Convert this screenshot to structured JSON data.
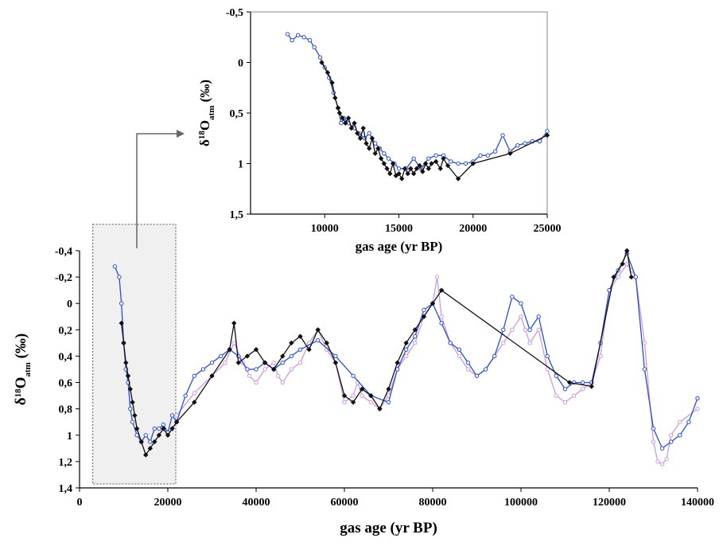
{
  "chart_data": [
    {
      "type": "line",
      "panel": "main",
      "xlabel": "gas age (yr BP)",
      "ylabel_main": "δ",
      "ylabel_sup": "18",
      "ylabel_o": "O",
      "ylabel_sub": "atm",
      "ylabel_unit": " (‰)",
      "xlim": [
        0,
        140000
      ],
      "ylim": [
        -0.4,
        1.4
      ],
      "y_inverted": true,
      "grid": false,
      "legend": "none",
      "x_ticks": [
        0,
        20000,
        40000,
        60000,
        80000,
        100000,
        120000,
        140000
      ],
      "x_tick_labels": [
        "0",
        "20000",
        "40000",
        "60000",
        "80000",
        "100000",
        "120000",
        "140000"
      ],
      "y_ticks": [
        -0.4,
        -0.2,
        0,
        0.2,
        0.4,
        0.6,
        0.8,
        1,
        1.2,
        1.4
      ],
      "y_tick_labels": [
        "-0,4",
        "-0,2",
        "0",
        "0,2",
        "0,4",
        "0,6",
        "0,8",
        "1",
        "1,2",
        "1,4"
      ],
      "highlight_box": {
        "x_range": [
          3000,
          21800
        ],
        "y_range": [
          -0.6,
          1.37
        ],
        "fill": "#f0f0f0"
      },
      "series": [
        {
          "color": "#cc99dd",
          "marker": "circle",
          "x": [
            22000,
            26000,
            30000,
            33000,
            35000,
            37000,
            38500,
            40000,
            42000,
            44000,
            45000,
            46000,
            48000,
            50000,
            52000,
            54000,
            56000,
            58000,
            60000,
            62000,
            63000,
            64000,
            66000,
            68000,
            70000,
            72000,
            74000,
            76000,
            78000,
            80000,
            81000,
            82000,
            84000,
            86000,
            88000,
            90000,
            92000,
            94000,
            96000,
            98000,
            100000,
            101000,
            102000,
            104000,
            106000,
            108000,
            110000,
            112000,
            114000,
            116000,
            118000,
            120000,
            122000,
            124000,
            125000,
            126000,
            128000,
            130000,
            131000,
            132000,
            133000,
            134000,
            136000,
            140000
          ],
          "y": [
            0.85,
            0.68,
            0.55,
            0.45,
            0.3,
            0.45,
            0.55,
            0.6,
            0.5,
            0.45,
            0.55,
            0.6,
            0.5,
            0.45,
            0.3,
            0.2,
            0.35,
            0.45,
            0.75,
            0.7,
            0.6,
            0.7,
            0.75,
            0.8,
            0.7,
            0.5,
            0.4,
            0.3,
            0.1,
            0.0,
            -0.2,
            0.1,
            0.3,
            0.4,
            0.5,
            0.55,
            0.5,
            0.4,
            0.3,
            0.2,
            0.1,
            0.2,
            0.3,
            0.2,
            0.5,
            0.7,
            0.75,
            0.7,
            0.65,
            0.6,
            0.4,
            -0.1,
            -0.2,
            -0.3,
            -0.25,
            -0.2,
            0.3,
            1.05,
            1.2,
            1.22,
            1.18,
            1.0,
            0.9,
            0.8
          ]
        },
        {
          "color": "#2c4fc4",
          "marker": "circle",
          "x": [
            8000,
            9000,
            9500,
            10000,
            10500,
            11000,
            11500,
            12000,
            13000,
            14000,
            15000,
            16000,
            17000,
            18000,
            19000,
            20000,
            21000,
            22000,
            24000,
            26000,
            28000,
            30000,
            32000,
            34000,
            36000,
            38000,
            40000,
            42000,
            44000,
            46000,
            48000,
            50000,
            54000,
            58000,
            62000,
            66000,
            70000,
            72000,
            74000,
            76000,
            78000,
            80000,
            82000,
            84000,
            86000,
            88000,
            90000,
            92000,
            94000,
            96000,
            98000,
            100000,
            102000,
            104000,
            106000,
            108000,
            110000,
            112000,
            114000,
            116000,
            118000,
            120000,
            122000,
            124000,
            126000,
            128000,
            130000,
            132000,
            134000,
            136000,
            138000,
            140000
          ],
          "y": [
            -0.28,
            -0.2,
            0.0,
            0.3,
            0.5,
            0.6,
            0.8,
            0.9,
            1.0,
            1.05,
            1.0,
            1.05,
            0.95,
            0.95,
            0.92,
            0.98,
            0.85,
            0.9,
            0.7,
            0.55,
            0.5,
            0.45,
            0.4,
            0.35,
            0.4,
            0.5,
            0.5,
            0.45,
            0.5,
            0.45,
            0.4,
            0.35,
            0.28,
            0.4,
            0.55,
            0.7,
            0.75,
            0.5,
            0.35,
            0.25,
            0.05,
            0.0,
            0.15,
            0.3,
            0.35,
            0.45,
            0.55,
            0.5,
            0.4,
            0.2,
            -0.05,
            0.0,
            0.2,
            0.1,
            0.4,
            0.55,
            0.65,
            0.6,
            0.6,
            0.6,
            0.3,
            -0.1,
            -0.25,
            -0.38,
            -0.2,
            0.5,
            0.95,
            1.1,
            1.05,
            1.0,
            0.9,
            0.72
          ]
        },
        {
          "color": "#111111",
          "marker": "diamond",
          "x": [
            9500,
            10000,
            10500,
            11000,
            11500,
            12000,
            12500,
            13000,
            14000,
            15000,
            16000,
            17000,
            18000,
            19000,
            20000,
            21000,
            22000,
            26000,
            30000,
            34000,
            35000,
            36000,
            38000,
            40000,
            42000,
            44000,
            46000,
            48000,
            50000,
            52000,
            54000,
            56000,
            58000,
            60000,
            62000,
            64000,
            66000,
            68000,
            70000,
            72000,
            74000,
            76000,
            78000,
            80000,
            82000,
            111000,
            116000,
            121000,
            123000,
            124000,
            125000
          ],
          "y": [
            0.15,
            0.3,
            0.45,
            0.55,
            0.65,
            0.75,
            0.85,
            0.95,
            1.05,
            1.15,
            1.1,
            1.05,
            1.0,
            0.95,
            1.0,
            0.95,
            0.9,
            0.75,
            0.55,
            0.35,
            0.15,
            0.45,
            0.4,
            0.35,
            0.45,
            0.5,
            0.4,
            0.3,
            0.25,
            0.35,
            0.2,
            0.3,
            0.45,
            0.7,
            0.75,
            0.65,
            0.7,
            0.8,
            0.65,
            0.45,
            0.3,
            0.2,
            0.1,
            0.0,
            -0.1,
            0.6,
            0.63,
            -0.2,
            -0.3,
            -0.4,
            -0.2
          ]
        }
      ]
    },
    {
      "type": "line",
      "panel": "inset",
      "xlabel": "gas age (yr BP)",
      "ylabel_main": "δ",
      "ylabel_sup": "18",
      "ylabel_o": "O",
      "ylabel_sub": "atm",
      "ylabel_unit": " (‰)",
      "xlim": [
        5000,
        25000
      ],
      "ylim": [
        -0.5,
        1.5
      ],
      "y_inverted": true,
      "grid": false,
      "legend": "none",
      "x_ticks": [
        10000,
        15000,
        20000,
        25000
      ],
      "x_tick_labels": [
        "10000",
        "15000",
        "20000",
        "25000"
      ],
      "y_ticks": [
        -0.5,
        0,
        0.5,
        1,
        1.5
      ],
      "y_tick_labels": [
        "-0,5",
        "0",
        "0,5",
        "1",
        "1,5"
      ],
      "series": [
        {
          "color": "#2c4fc4",
          "marker": "circle",
          "x": [
            7500,
            7800,
            8200,
            8600,
            9000,
            9300,
            9700,
            10000,
            10300,
            10600,
            10900,
            11100,
            11300,
            11600,
            12000,
            12300,
            12700,
            13000,
            13400,
            13700,
            14000,
            14300,
            14700,
            15000,
            15500,
            16000,
            16500,
            17000,
            17500,
            18000,
            18500,
            19000,
            19500,
            20000,
            20500,
            21000,
            21500,
            22000,
            22500,
            23000,
            23500,
            24000,
            24500,
            25000
          ],
          "y": [
            -0.28,
            -0.22,
            -0.27,
            -0.25,
            -0.22,
            -0.15,
            -0.05,
            0.05,
            0.15,
            0.3,
            0.45,
            0.6,
            0.55,
            0.6,
            0.65,
            0.7,
            0.75,
            0.7,
            0.8,
            0.85,
            0.9,
            0.95,
            1.0,
            1.05,
            1.05,
            0.95,
            1.05,
            0.95,
            0.92,
            0.92,
            0.98,
            1.0,
            1.0,
            0.98,
            0.92,
            0.92,
            0.88,
            0.72,
            0.88,
            0.82,
            0.8,
            0.78,
            0.78,
            0.68
          ]
        },
        {
          "color": "#111111",
          "marker": "diamond",
          "x": [
            9800,
            10200,
            10500,
            10700,
            10900,
            11000,
            11200,
            11400,
            11600,
            11800,
            12000,
            12200,
            12400,
            12600,
            12800,
            13000,
            13200,
            13400,
            13600,
            13800,
            14000,
            14200,
            14400,
            14600,
            14800,
            15000,
            15200,
            15400,
            15600,
            15800,
            16000,
            16200,
            16400,
            16600,
            16800,
            17000,
            17200,
            17500,
            17800,
            18000,
            18300,
            19000,
            20000,
            22500,
            25000
          ],
          "y": [
            0.0,
            0.1,
            0.2,
            0.35,
            0.45,
            0.5,
            0.55,
            0.6,
            0.55,
            0.65,
            0.6,
            0.7,
            0.75,
            0.65,
            0.8,
            0.85,
            0.75,
            0.9,
            0.85,
            0.95,
            1.0,
            1.05,
            1.1,
            1.0,
            1.12,
            1.1,
            1.15,
            1.05,
            1.1,
            1.05,
            1.1,
            1.05,
            1.02,
            1.08,
            1.0,
            1.05,
            1.0,
            0.98,
            1.05,
            0.95,
            1.02,
            1.15,
            1.0,
            0.9,
            0.72
          ]
        }
      ]
    }
  ]
}
